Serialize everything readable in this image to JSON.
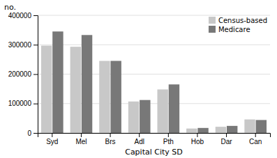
{
  "chart_data": {
    "type": "bar",
    "xlabel": "Capital City SD",
    "ylabel": "no.",
    "categories": [
      "Syd",
      "Mel",
      "Brs",
      "Adl",
      "Pth",
      "Hob",
      "Dar",
      "Can"
    ],
    "series": [
      {
        "name": "Census-based",
        "color": "#c8c8c8",
        "values": [
          297000,
          293000,
          245000,
          107000,
          148000,
          15000,
          21000,
          46000
        ]
      },
      {
        "name": "Medicare",
        "color": "#787878",
        "values": [
          345000,
          333000,
          245000,
          112000,
          165000,
          17000,
          24000,
          44000
        ]
      }
    ],
    "ylim": [
      0,
      400000
    ],
    "yticks": [
      0,
      100000,
      200000,
      300000,
      400000
    ],
    "grid": true,
    "legend": "upper right"
  }
}
